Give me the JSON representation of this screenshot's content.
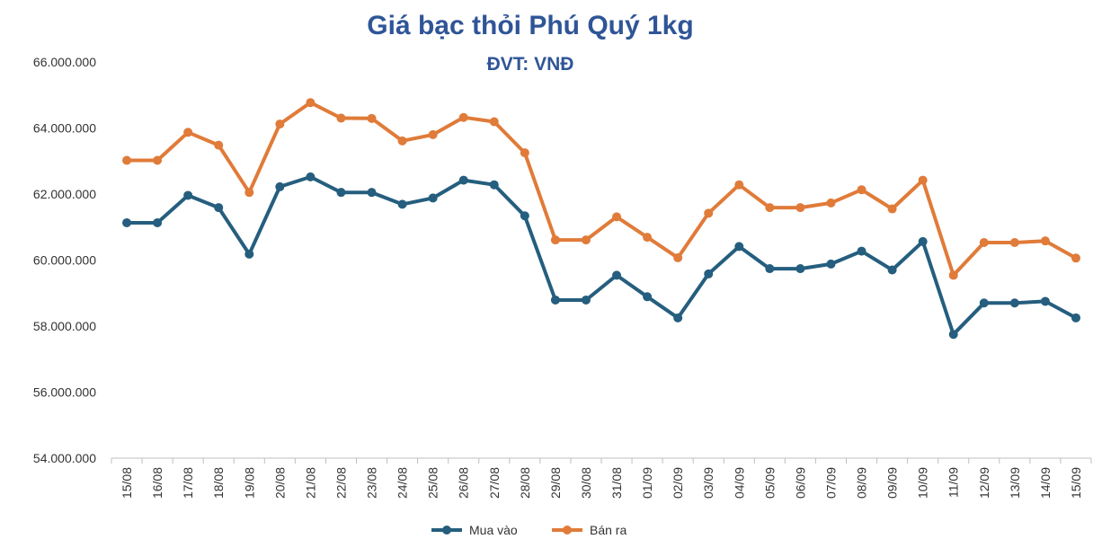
{
  "chart_data": {
    "type": "line",
    "title": "Giá bạc thỏi Phú Quý 1kg",
    "subtitle": "ĐVT: VNĐ",
    "xlabel": "",
    "ylabel": "",
    "ylim": [
      54000000,
      66000000
    ],
    "y_ticks": [
      "54.000.000",
      "56.000.000",
      "58.000.000",
      "60.000.000",
      "62.000.000",
      "64.000.000",
      "66.000.000"
    ],
    "y_tick_values": [
      54000000,
      56000000,
      58000000,
      60000000,
      62000000,
      64000000,
      66000000
    ],
    "categories": [
      "15/08",
      "16/08",
      "17/08",
      "18/08",
      "19/08",
      "20/08",
      "21/08",
      "22/08",
      "23/08",
      "24/08",
      "25/08",
      "26/08",
      "27/08",
      "28/08",
      "29/08",
      "30/08",
      "31/08",
      "01/09",
      "02/09",
      "03/09",
      "04/09",
      "05/09",
      "06/09",
      "07/09",
      "08/09",
      "09/09",
      "10/09",
      "11/09",
      "12/09",
      "13/09",
      "14/09",
      "15/09"
    ],
    "series": [
      {
        "name": "Mua vào",
        "color": "#255e7e",
        "values": [
          61130000,
          61130000,
          61960000,
          61590000,
          60180000,
          62220000,
          62520000,
          62050000,
          62050000,
          61690000,
          61880000,
          62420000,
          62280000,
          61340000,
          58790000,
          58790000,
          59540000,
          58890000,
          58250000,
          59580000,
          60410000,
          59740000,
          59740000,
          59880000,
          60270000,
          59700000,
          60560000,
          57750000,
          58700000,
          58700000,
          58750000,
          58250000
        ]
      },
      {
        "name": "Bán ra",
        "color": "#e07b39",
        "values": [
          63020000,
          63020000,
          63870000,
          63480000,
          62050000,
          64120000,
          64770000,
          64300000,
          64290000,
          63610000,
          63800000,
          64320000,
          64190000,
          63250000,
          60610000,
          60610000,
          61310000,
          60690000,
          60070000,
          61420000,
          62280000,
          61590000,
          61590000,
          61730000,
          62130000,
          61550000,
          62420000,
          59540000,
          60530000,
          60530000,
          60580000,
          60060000
        ]
      }
    ],
    "grid": false,
    "legend": "bottom-center"
  }
}
